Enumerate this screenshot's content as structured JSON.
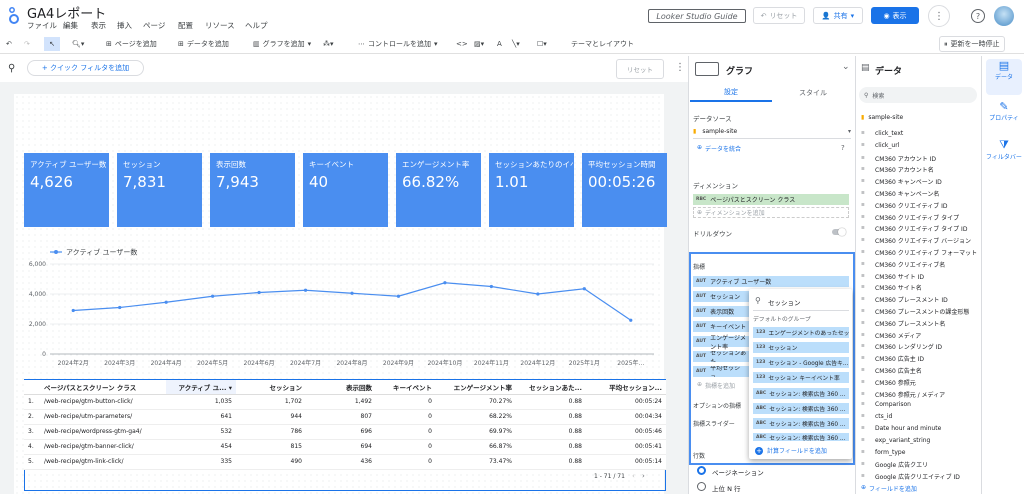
{
  "app": {
    "title": "GA4レポート",
    "brand": "Looker Studio Guide",
    "menu": [
      "ファイル",
      "編集",
      "表示",
      "挿入",
      "ページ",
      "配置",
      "リソース",
      "ヘルプ"
    ],
    "reset": "リセット",
    "share": "共有",
    "view": "表示"
  },
  "toolbar": {
    "add_page": "ページを追加",
    "add_data": "データを追加",
    "add_chart": "グラフを追加",
    "add_control": "コントロールを追加",
    "theme": "テーマとレイアウト",
    "pause": "更新を一時停止"
  },
  "canvas": {
    "quick_filter": "+ クイック フィルタを追加",
    "reset": "リセット"
  },
  "scorecards": [
    {
      "label": "アクティブ ユーザー数",
      "value": "4,626"
    },
    {
      "label": "セッション",
      "value": "7,831"
    },
    {
      "label": "表示回数",
      "value": "7,943"
    },
    {
      "label": "キーイベント",
      "value": "40"
    },
    {
      "label": "エンゲージメント率",
      "value": "66.82%"
    },
    {
      "label": "セッションあたりのイベント",
      "value": "1.01"
    },
    {
      "label": "平均セッション時間",
      "value": "00:05:26"
    }
  ],
  "chart_data": {
    "type": "line",
    "legend": "アクティブ ユーザー数",
    "categories": [
      "2024年2月",
      "2024年3月",
      "2024年4月",
      "2024年5月",
      "2024年6月",
      "2024年7月",
      "2024年8月",
      "2024年9月",
      "2024年10月",
      "2024年11月",
      "2024年12月",
      "2025年1月",
      "2025年..."
    ],
    "values": [
      2900,
      3100,
      3450,
      3850,
      4100,
      4250,
      4050,
      3850,
      4750,
      4500,
      4000,
      4350,
      2250
    ],
    "ylim": [
      0,
      6000
    ],
    "yticks": [
      "6,000",
      "4,000",
      "2,000",
      "0"
    ],
    "legend_position": "top-left",
    "grid": true
  },
  "table": {
    "headers": [
      "ページパスとスクリーン クラス",
      "アクティブ ユ... ▾",
      "セッション",
      "表示回数",
      "キーイベント",
      "エンゲージメント率",
      "セッションあた...",
      "平均セッション..."
    ],
    "rows": [
      [
        "1.",
        "/web-recipe/gtm-button-click/",
        "1,035",
        "1,702",
        "1,492",
        "0",
        "70.27%",
        "0.88",
        "00:05:24"
      ],
      [
        "2.",
        "/web-recipe/utm-parameters/",
        "641",
        "944",
        "807",
        "0",
        "68.22%",
        "0.88",
        "00:04:34"
      ],
      [
        "3.",
        "/web-recipe/wordpress-gtm-ga4/",
        "532",
        "786",
        "696",
        "0",
        "69.97%",
        "0.88",
        "00:05:46"
      ],
      [
        "4.",
        "/web-recipe/gtm-banner-click/",
        "454",
        "815",
        "694",
        "0",
        "66.87%",
        "0.88",
        "00:05:41"
      ],
      [
        "5.",
        "/web-recipe/gtm-link-click/",
        "335",
        "490",
        "436",
        "0",
        "73.47%",
        "0.88",
        "00:05:14"
      ]
    ],
    "pager": "1 - 71 / 71"
  },
  "props": {
    "title": "グラフ",
    "tab_setup": "設定",
    "tab_style": "スタイル",
    "datasource_label": "データソース",
    "datasource": "sample-site",
    "blend": "データを統合",
    "dimension_label": "ディメンション",
    "dimension": "ページパスとスクリーン クラス",
    "add_dimension": "ディメンションを追加",
    "drilldown": "ドリルダウン",
    "metric_label": "指標",
    "metrics": [
      "アクティブ ユーザー数",
      "セッション",
      "表示回数",
      "キーイベント",
      "エンゲージメント率",
      "セッションあた...",
      "平均セッショ..."
    ],
    "add_metric": "指標を追加",
    "optional_metric": "オプションの指標",
    "metric_slider": "指標スライダー",
    "rows_label": "行数",
    "pagination": "ページネーション",
    "topn": "上位 N 行"
  },
  "popup": {
    "search": "セッション",
    "group": "デフォルトのグループ",
    "items": [
      {
        "k": "123",
        "t": "エンゲージメントのあったセッシ..."
      },
      {
        "k": "123",
        "t": "セッション"
      },
      {
        "k": "123",
        "t": "セッション - Google 広告キ..."
      },
      {
        "k": "123",
        "t": "セッション キーイベント率"
      },
      {
        "k": "ABC",
        "t": "セッション: 検索広告 360 ..."
      },
      {
        "k": "ABC",
        "t": "セッション: 検索広告 360 ..."
      },
      {
        "k": "ABC",
        "t": "セッション: 検索広告 360 ..."
      },
      {
        "k": "ABC",
        "t": "セッション: 検索広告 360 ..."
      }
    ],
    "add_field": "計算フィールドを追加"
  },
  "data": {
    "title": "データ",
    "search": "検索",
    "source": "sample-site",
    "fields": [
      "click_text",
      "click_url",
      "CM360 アカウント ID",
      "CM360 アカウント名",
      "CM360 キャンペーン ID",
      "CM360 キャンペーン名",
      "CM360 クリエイティブ ID",
      "CM360 クリエイティブ タイプ",
      "CM360 クリエイティブ タイプ ID",
      "CM360 クリエイティブ バージョン",
      "CM360 クリエイティブ フォーマット",
      "CM360 クリエイティブ名",
      "CM360 サイト ID",
      "CM360 サイト名",
      "CM360 プレースメント ID",
      "CM360 プレースメントの課金形態",
      "CM360 プレースメント名",
      "CM360 メディア",
      "CM360 レンダリング ID",
      "CM360 広告主 ID",
      "CM360 広告主名",
      "CM360 参照元",
      "CM360 参照元 / メディア",
      "Comparison",
      "cts_id",
      "Date hour and minute",
      "exp_variant_string",
      "form_type",
      "Google 広告クエリ",
      "Google 広告クリエイティブ ID"
    ],
    "add_field": "フィールドを追加"
  },
  "rail": {
    "data": "データ",
    "props": "プロパティ",
    "filter": "フィルタバー"
  }
}
